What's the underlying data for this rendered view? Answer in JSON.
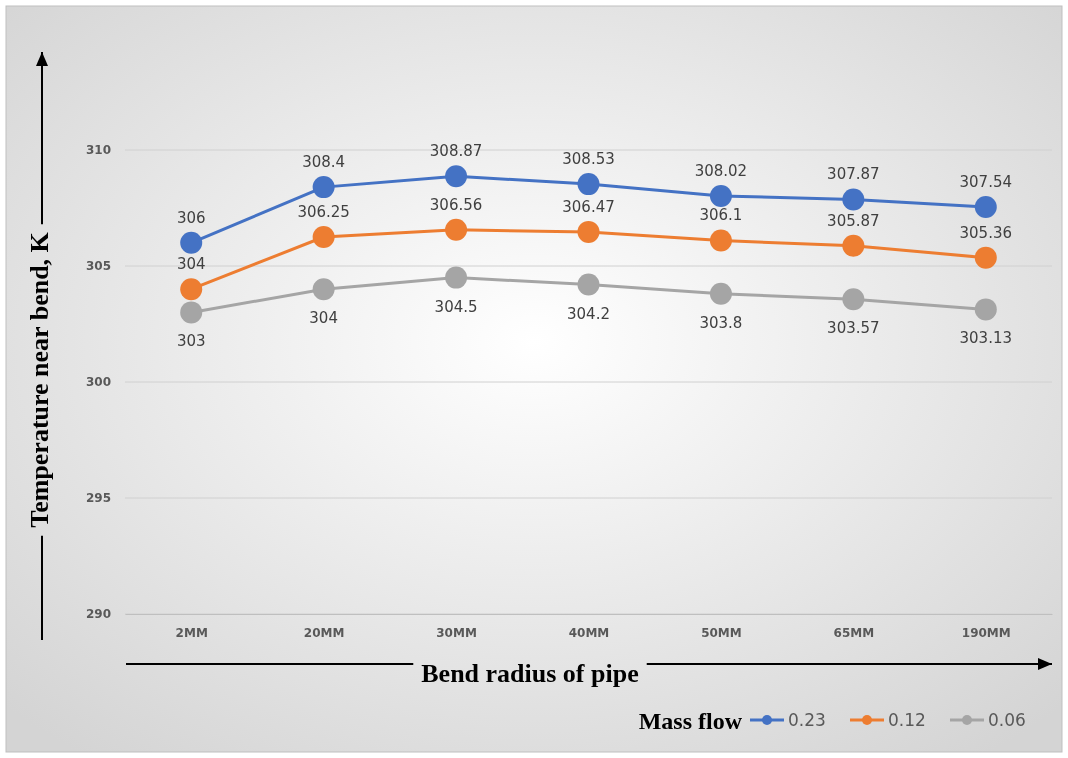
{
  "chart_data": {
    "type": "line",
    "xlabel": "Bend radius of pipe",
    "ylabel": "Temperature near bend, K",
    "legend_title": "Mass flow",
    "categories": [
      "2MM",
      "20MM",
      "30MM",
      "40MM",
      "50MM",
      "65MM",
      "190MM"
    ],
    "series": [
      {
        "name": "0.23",
        "color": "#4472c4",
        "values": [
          306,
          308.4,
          308.87,
          308.53,
          308.02,
          307.87,
          307.54
        ]
      },
      {
        "name": "0.12",
        "color": "#ed7d31",
        "values": [
          304,
          306.25,
          306.56,
          306.47,
          306.1,
          305.87,
          305.36
        ]
      },
      {
        "name": "0.06",
        "color": "#a5a5a5",
        "values": [
          303,
          304,
          304.5,
          304.2,
          303.8,
          303.57,
          303.13
        ]
      }
    ],
    "ylim": [
      290,
      310
    ],
    "yticks": [
      290,
      295,
      300,
      305,
      310
    ],
    "grid": "y",
    "legend": "bottom right",
    "marker": "circle",
    "line_style": "solid",
    "data_labels": true
  }
}
